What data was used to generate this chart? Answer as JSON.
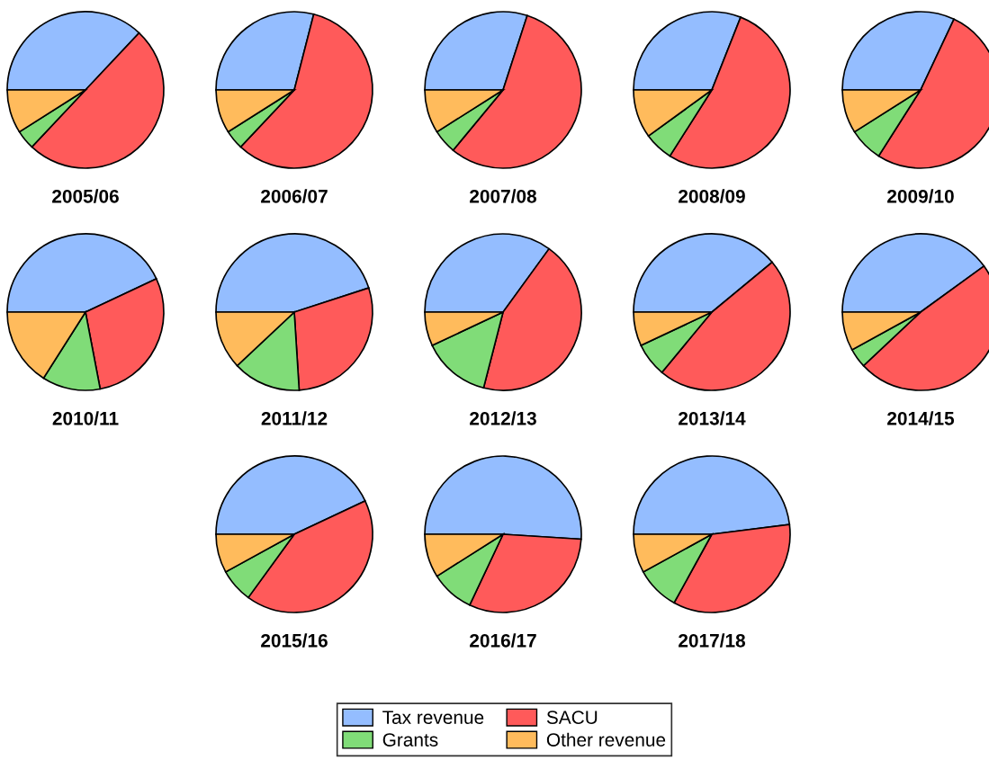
{
  "chart_data": [
    {
      "type": "pie",
      "title": "2005/06",
      "categories": [
        "Tax revenue",
        "SACU",
        "Grants",
        "Other revenue"
      ],
      "values": [
        37,
        50,
        4,
        9
      ],
      "colors": [
        "#94bdff",
        "#ff5a5a",
        "#80dc78",
        "#ffbb5c"
      ],
      "legend": "bottom"
    },
    {
      "type": "pie",
      "title": "2006/07",
      "categories": [
        null,
        null,
        null,
        null
      ],
      "values": [
        29,
        58,
        4,
        9
      ],
      "colors": [
        "#94bdff",
        "#ff5a5a",
        "#80dc78",
        "#ffbb5c"
      ]
    },
    {
      "type": "pie",
      "title": "2007/08",
      "categories": [
        null,
        null,
        null,
        null
      ],
      "values": [
        30,
        56,
        5,
        9
      ],
      "colors": [
        "#94bdff",
        "#ff5a5a",
        "#80dc78",
        "#ffbb5c"
      ]
    },
    {
      "type": "pie",
      "title": "2008/09",
      "categories": [
        null,
        null,
        null,
        null
      ],
      "values": [
        31,
        53,
        6,
        10
      ],
      "colors": [
        "#94bdff",
        "#ff5a5a",
        "#80dc78",
        "#ffbb5c"
      ]
    },
    {
      "type": "pie",
      "title": "2009/10",
      "categories": [
        null,
        null,
        null,
        null
      ],
      "values": [
        32,
        52,
        7,
        9
      ],
      "colors": [
        "#94bdff",
        "#ff5a5a",
        "#80dc78",
        "#ffbb5c"
      ]
    },
    {
      "type": "pie",
      "title": "2010/11",
      "categories": [
        null,
        null,
        null,
        null
      ],
      "values": [
        43,
        29,
        12,
        16
      ],
      "colors": [
        "#94bdff",
        "#ff5a5a",
        "#80dc78",
        "#ffbb5c"
      ]
    },
    {
      "type": "pie",
      "title": "2011/12",
      "categories": [
        null,
        null,
        null,
        null
      ],
      "values": [
        45,
        29,
        14,
        12
      ],
      "colors": [
        "#94bdff",
        "#ff5a5a",
        "#80dc78",
        "#ffbb5c"
      ]
    },
    {
      "type": "pie",
      "title": "2012/13",
      "categories": [
        null,
        null,
        null,
        null
      ],
      "values": [
        35,
        44,
        14,
        7
      ],
      "colors": [
        "#94bdff",
        "#ff5a5a",
        "#80dc78",
        "#ffbb5c"
      ]
    },
    {
      "type": "pie",
      "title": "2013/14",
      "categories": [
        null,
        null,
        null,
        null
      ],
      "values": [
        39,
        47,
        7,
        7
      ],
      "colors": [
        "#94bdff",
        "#ff5a5a",
        "#80dc78",
        "#ffbb5c"
      ]
    },
    {
      "type": "pie",
      "title": "2014/15",
      "categories": [
        null,
        null,
        null,
        null
      ],
      "values": [
        40,
        48,
        4,
        8
      ],
      "colors": [
        "#94bdff",
        "#ff5a5a",
        "#80dc78",
        "#ffbb5c"
      ]
    },
    {
      "type": "pie",
      "title": "2015/16",
      "categories": [
        null,
        null,
        null,
        null
      ],
      "values": [
        43,
        42,
        7,
        8
      ],
      "colors": [
        "#94bdff",
        "#ff5a5a",
        "#80dc78",
        "#ffbb5c"
      ]
    },
    {
      "type": "pie",
      "title": "2016/17",
      "categories": [
        null,
        null,
        null,
        null
      ],
      "values": [
        51,
        31,
        9,
        9
      ],
      "colors": [
        "#94bdff",
        "#ff5a5a",
        "#80dc78",
        "#ffbb5c"
      ]
    },
    {
      "type": "pie",
      "title": "2017/18",
      "categories": [
        null,
        null,
        null,
        null
      ],
      "values": [
        48,
        35,
        9,
        8
      ],
      "colors": [
        "#94bdff",
        "#ff5a5a",
        "#80dc78",
        "#ffbb5c"
      ]
    }
  ]
}
